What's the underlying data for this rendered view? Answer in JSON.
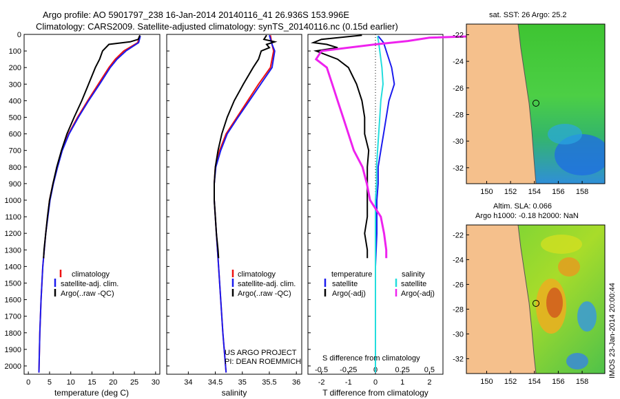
{
  "title": {
    "line1": "Argo profile: AO 5901797_238 16-Jan-2014 20140116_41 26.936S 153.996E",
    "line2": "Climatology: CARS2009. Satellite-adjusted climatology: synTS_20140116.nc (0.15d earlier)"
  },
  "credit": {
    "project": "US ARGO PROJECT",
    "pi": "PI: DEAN ROEMMICH",
    "imos": "IMOS 23-Jan-2014 20:00:44"
  },
  "colors": {
    "climatology": "#ee1111",
    "satellite": "#1a1aee",
    "argo": "#000000",
    "sat_salinity": "#22dddd",
    "argo_salinity": "#ee22ee",
    "land": "#f5c08c",
    "coast": "#555555"
  },
  "chart_data": [
    {
      "type": "line",
      "name": "temperature",
      "xlabel": "temperature (deg C)",
      "ylabel": "",
      "xlim": [
        -1,
        31
      ],
      "ylim": [
        2050,
        0
      ],
      "xticks": [
        0,
        5,
        10,
        15,
        20,
        25,
        30
      ],
      "xtick_labels": [
        "0",
        "5",
        "10",
        "15",
        "20",
        "25",
        "30"
      ],
      "yticks": [
        0,
        100,
        200,
        300,
        400,
        500,
        600,
        700,
        800,
        900,
        1000,
        1100,
        1200,
        1300,
        1400,
        1500,
        1600,
        1700,
        1800,
        1900,
        2000
      ],
      "ytick_labels": [
        "0",
        "100",
        "200",
        "300",
        "400",
        "500",
        "600",
        "700",
        "800",
        "900",
        "1000",
        "1100",
        "1200",
        "1300",
        "1400",
        "1500",
        "1600",
        "1700",
        "1800",
        "1900",
        "2000"
      ],
      "legend": [
        "climatology",
        "satellite-adj. clim.",
        "Argo(..raw -QC)"
      ],
      "series": [
        {
          "name": "climatology",
          "depth": [
            10,
            50,
            100,
            150,
            200,
            300,
            400,
            500,
            600,
            700,
            800,
            900,
            1000,
            1200,
            1400,
            1600,
            1800,
            2040
          ],
          "values": [
            26.2,
            25.8,
            22.5,
            20.5,
            19.0,
            16.5,
            14.0,
            11.6,
            9.5,
            7.9,
            6.8,
            5.8,
            5.0,
            4.1,
            3.4,
            3.0,
            2.7,
            2.5
          ]
        },
        {
          "name": "satellite-adj. clim.",
          "depth": [
            10,
            50,
            100,
            150,
            200,
            300,
            400,
            500,
            600,
            700,
            800,
            900,
            1000,
            1200,
            1400,
            1600,
            1800,
            2040
          ],
          "values": [
            26.4,
            26.0,
            23.0,
            20.9,
            19.3,
            16.8,
            14.2,
            11.8,
            9.6,
            8.0,
            6.9,
            5.9,
            5.1,
            4.1,
            3.4,
            3.0,
            2.7,
            2.5
          ]
        },
        {
          "name": "Argo(..raw -QC)",
          "depth": [
            5,
            30,
            45,
            60,
            100,
            150,
            200,
            300,
            400,
            500,
            600,
            700,
            800,
            900,
            1000,
            1100,
            1200,
            1300,
            1350
          ],
          "values": [
            26.3,
            25.9,
            24.0,
            19.0,
            17.5,
            16.8,
            15.8,
            14.2,
            12.6,
            10.8,
            9.1,
            7.8,
            6.7,
            5.8,
            5.0,
            4.5,
            4.1,
            3.7,
            3.6
          ]
        }
      ]
    },
    {
      "type": "line",
      "name": "salinity",
      "xlabel": "salinity",
      "ylabel": "",
      "xlim": [
        33.6,
        36.1
      ],
      "ylim": [
        2050,
        0
      ],
      "xticks": [
        34,
        34.5,
        35,
        35.5,
        36
      ],
      "xtick_labels": [
        "34",
        "34.5",
        "35",
        "35.5",
        "36"
      ],
      "legend": [
        "climatology",
        "satellite-adj. clim.",
        "Argo(..raw -QC)"
      ],
      "series": [
        {
          "name": "climatology",
          "depth": [
            5,
            60,
            100,
            200,
            300,
            400,
            500,
            600,
            700,
            800,
            900,
            1000,
            1200,
            1400,
            1600,
            1800,
            2040
          ],
          "values": [
            35.52,
            35.55,
            35.58,
            35.52,
            35.3,
            35.1,
            34.9,
            34.7,
            34.58,
            34.5,
            34.48,
            34.48,
            34.52,
            34.56,
            34.6,
            34.64,
            34.7
          ]
        },
        {
          "name": "satellite-adj. clim.",
          "depth": [
            5,
            60,
            100,
            200,
            300,
            400,
            500,
            600,
            700,
            800,
            900,
            1000,
            1200,
            1400,
            1600,
            1800,
            2040
          ],
          "values": [
            35.5,
            35.55,
            35.6,
            35.55,
            35.34,
            35.13,
            34.92,
            34.72,
            34.6,
            34.51,
            34.48,
            34.48,
            34.52,
            34.56,
            34.6,
            34.64,
            34.7
          ]
        },
        {
          "name": "Argo(..raw -QC)",
          "depth": [
            5,
            30,
            45,
            60,
            80,
            100,
            150,
            200,
            300,
            400,
            500,
            600,
            700,
            800,
            900,
            1000,
            1100,
            1200,
            1300,
            1350
          ],
          "values": [
            35.45,
            35.4,
            35.6,
            35.45,
            35.5,
            35.35,
            35.3,
            35.2,
            35.02,
            34.85,
            34.72,
            34.62,
            34.55,
            34.5,
            34.48,
            34.48,
            34.5,
            34.52,
            34.55,
            34.56
          ]
        }
      ]
    },
    {
      "type": "line",
      "name": "difference",
      "xlabel": "T difference from climatology",
      "xlabel_top": "S difference from climatology",
      "xlim": [
        -2.5,
        2.5
      ],
      "ylim": [
        2050,
        0
      ],
      "xticks_T": [
        -2,
        -1,
        0,
        1,
        2
      ],
      "xtick_labels_T": [
        "-2",
        "-1",
        "0",
        "1",
        "2"
      ],
      "xticks_S": [
        -0.5,
        -0.25,
        0,
        0.25,
        0.5
      ],
      "xtick_labels_S": [
        "-0.5",
        "-0.25",
        "0",
        "0.25",
        "0.5"
      ],
      "legend": {
        "temperature_title": "temperature",
        "salinity_title": "salinity",
        "items": [
          "satellite",
          "Argo(-adj)",
          "satellite",
          "Argo(-adj)"
        ]
      },
      "series": [
        {
          "name": "T satellite",
          "depth": [
            10,
            50,
            100,
            200,
            300,
            400,
            500,
            600,
            700,
            800,
            900,
            1000,
            1200,
            1400,
            1600,
            1800,
            2040
          ],
          "values": [
            0.1,
            0.3,
            0.4,
            0.6,
            0.7,
            0.5,
            0.4,
            0.3,
            0.2,
            0.1,
            0.1,
            0.05,
            0.05,
            0,
            0,
            0,
            0
          ]
        },
        {
          "name": "T Argo(-adj)",
          "depth": [
            5,
            30,
            50,
            60,
            80,
            100,
            150,
            200,
            300,
            400,
            500,
            600,
            700,
            800,
            900,
            1000,
            1100,
            1200,
            1300,
            1350
          ],
          "values": [
            -0.5,
            -2.0,
            -2.3,
            -1.8,
            -1.4,
            -2.2,
            -1.4,
            -1.0,
            -0.7,
            -0.5,
            -0.4,
            -0.4,
            -0.25,
            -0.3,
            -0.3,
            -0.3,
            -0.3,
            -0.4,
            -0.3,
            -0.3
          ]
        },
        {
          "name": "S satellite",
          "depth": [
            10,
            50,
            100,
            200,
            300,
            400,
            500,
            600,
            700,
            800,
            900,
            1000,
            1200,
            1400,
            1600,
            1800,
            2040
          ],
          "values": [
            0.02,
            0.03,
            0.04,
            0.06,
            0.07,
            0.05,
            0.04,
            0.03,
            0.02,
            0.01,
            0.01,
            0,
            0,
            0,
            0,
            0,
            0
          ]
        },
        {
          "name": "S Argo(-adj)",
          "depth": [
            5,
            20,
            40,
            60,
            100,
            150,
            200,
            300,
            400,
            500,
            600,
            700,
            800,
            900,
            1000,
            1100,
            1200,
            1300,
            1350
          ],
          "values": [
            1.2,
            0.5,
            0.3,
            0.0,
            -0.5,
            -0.55,
            -0.45,
            -0.4,
            -0.35,
            -0.3,
            -0.25,
            -0.2,
            -0.12,
            -0.08,
            -0.05,
            0.05,
            0.08,
            0.1,
            0.1
          ]
        }
      ]
    },
    {
      "type": "heatmap",
      "name": "sst-map",
      "title": "sat. SST: 26 Argo: 25.2",
      "xticks": [
        150,
        152,
        154,
        156,
        158
      ],
      "xtick_labels": [
        "150",
        "152",
        "154",
        "156",
        "158"
      ],
      "yticks": [
        -22,
        -24,
        -26,
        -28,
        -30,
        -32
      ],
      "ytick_labels": [
        "-22",
        "-24",
        "-26",
        "-28",
        "-30",
        "-32"
      ],
      "xlim": [
        148.3,
        159.9
      ],
      "ylim": [
        -33.2,
        -21.2
      ]
    },
    {
      "type": "heatmap",
      "name": "sla-map",
      "title": "Altim. SLA: 0.066",
      "subtitle": "Argo h1000: -0.18 h2000: NaN",
      "xticks": [
        150,
        152,
        154,
        156,
        158
      ],
      "xtick_labels": [
        "150",
        "152",
        "154",
        "156",
        "158"
      ],
      "yticks": [
        -22,
        -24,
        -26,
        -28,
        -30,
        -32
      ],
      "ytick_labels": [
        "-22",
        "-24",
        "-26",
        "-28",
        "-30",
        "-32"
      ],
      "xlim": [
        148.3,
        159.9
      ],
      "ylim": [
        -33.2,
        -21.2
      ]
    }
  ]
}
